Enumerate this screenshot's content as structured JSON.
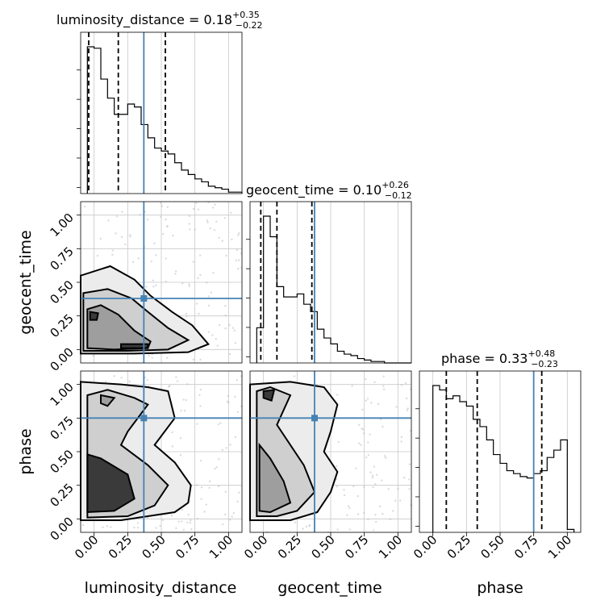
{
  "chart_data": {
    "type": "corner",
    "parameters": [
      "luminosity_distance",
      "geocent_time",
      "phase"
    ],
    "truths": [
      0.37,
      0.38,
      0.75
    ],
    "truth_color": "#4682b4",
    "range": [
      -0.1,
      1.1
    ],
    "ticks": [
      "0.00",
      "0.25",
      "0.50",
      "0.75",
      "1.00"
    ],
    "tick_values": [
      0,
      0.25,
      0.5,
      0.75,
      1.0
    ],
    "grid": true,
    "titles": [
      {
        "param": "luminosity_distance",
        "prefix": "luminosity_distance = ",
        "value": "0.18",
        "plus": "+0.35",
        "minus": "−0.22"
      },
      {
        "param": "geocent_time",
        "prefix": "geocent_time = ",
        "value": "0.10",
        "plus": "+0.26",
        "minus": "−0.12"
      },
      {
        "param": "phase",
        "prefix": "phase = ",
        "value": "0.33",
        "plus": "+0.48",
        "minus": "−0.23"
      }
    ],
    "histograms": [
      {
        "param": "luminosity_distance",
        "bin_edges": [
          -0.05,
          0.0,
          0.05,
          0.1,
          0.15,
          0.2,
          0.25,
          0.3,
          0.35,
          0.4,
          0.45,
          0.5,
          0.55,
          0.6,
          0.65,
          0.7,
          0.75,
          0.8,
          0.85,
          0.9,
          0.95,
          1.0,
          1.05,
          1.1
        ],
        "counts": [
          100,
          99,
          78,
          65,
          54,
          54,
          61,
          59,
          47,
          38,
          31,
          29,
          27,
          21,
          16,
          13,
          10,
          8,
          5,
          4,
          3,
          1,
          1
        ],
        "quantiles": [
          -0.04,
          0.18,
          0.53
        ],
        "truth": 0.37
      },
      {
        "param": "geocent_time",
        "bin_edges": [
          -0.05,
          0.0,
          0.05,
          0.1,
          0.15,
          0.2,
          0.25,
          0.3,
          0.35,
          0.4,
          0.45,
          0.5,
          0.55,
          0.6,
          0.65,
          0.7,
          0.75,
          0.8,
          0.85,
          0.9,
          0.95,
          1.0,
          1.05,
          1.1
        ],
        "counts": [
          24,
          100,
          86,
          52,
          45,
          45,
          47,
          40,
          35,
          23,
          17,
          13,
          8,
          6,
          5,
          3,
          2,
          1,
          1,
          0,
          0,
          0,
          0
        ],
        "quantiles": [
          -0.02,
          0.1,
          0.36
        ],
        "truth": 0.38
      },
      {
        "param": "phase",
        "bin_edges": [
          0.0,
          0.05,
          0.1,
          0.15,
          0.2,
          0.25,
          0.3,
          0.35,
          0.4,
          0.45,
          0.5,
          0.55,
          0.6,
          0.65,
          0.7,
          0.75,
          0.8,
          0.85,
          0.9,
          0.95,
          1.0,
          1.05
        ],
        "counts": [
          100,
          97,
          91,
          93,
          89,
          86,
          77,
          72,
          63,
          53,
          47,
          42,
          40,
          38,
          37,
          40,
          42,
          51,
          56,
          63,
          2
        ],
        "quantiles": [
          0.1,
          0.33,
          0.81
        ],
        "truth": 0.75
      }
    ],
    "pairs": [
      {
        "x": "luminosity_distance",
        "y": "geocent_time",
        "contours": [
          [
            [
              -0.1,
              0.55
            ],
            [
              0.12,
              0.62
            ],
            [
              0.3,
              0.52
            ],
            [
              0.42,
              0.4
            ],
            [
              0.58,
              0.28
            ],
            [
              0.73,
              0.18
            ],
            [
              0.85,
              0.04
            ],
            [
              0.7,
              -0.02
            ],
            [
              0.3,
              -0.03
            ],
            [
              -0.1,
              -0.03
            ]
          ],
          [
            [
              -0.08,
              0.42
            ],
            [
              0.1,
              0.45
            ],
            [
              0.28,
              0.38
            ],
            [
              0.4,
              0.28
            ],
            [
              0.55,
              0.16
            ],
            [
              0.7,
              0.07
            ],
            [
              0.55,
              0.0
            ],
            [
              0.25,
              -0.01
            ],
            [
              -0.08,
              -0.01
            ]
          ],
          [
            [
              -0.05,
              0.3
            ],
            [
              0.05,
              0.33
            ],
            [
              0.18,
              0.26
            ],
            [
              0.3,
              0.14
            ],
            [
              0.42,
              0.06
            ],
            [
              0.4,
              0.01
            ],
            [
              0.15,
              0.0
            ],
            [
              -0.05,
              0.01
            ]
          ],
          [
            [
              -0.03,
              0.22
            ],
            [
              0.02,
              0.22
            ],
            [
              0.03,
              0.27
            ],
            [
              -0.03,
              0.28
            ]
          ],
          [
            [
              0.2,
              0.01
            ],
            [
              0.4,
              0.01
            ],
            [
              0.4,
              0.04
            ],
            [
              0.2,
              0.04
            ]
          ]
        ]
      },
      {
        "x": "luminosity_distance",
        "y": "phase",
        "contours": [
          [
            [
              -0.1,
              1.02
            ],
            [
              0.2,
              1.0
            ],
            [
              0.4,
              0.98
            ],
            [
              0.55,
              0.95
            ],
            [
              0.6,
              0.75
            ],
            [
              0.45,
              0.55
            ],
            [
              0.6,
              0.42
            ],
            [
              0.72,
              0.25
            ],
            [
              0.7,
              0.12
            ],
            [
              0.6,
              0.05
            ],
            [
              0.2,
              -0.01
            ],
            [
              -0.1,
              -0.01
            ]
          ],
          [
            [
              -0.05,
              0.92
            ],
            [
              0.1,
              0.96
            ],
            [
              0.3,
              0.9
            ],
            [
              0.4,
              0.85
            ],
            [
              0.25,
              0.65
            ],
            [
              0.2,
              0.55
            ],
            [
              0.4,
              0.4
            ],
            [
              0.55,
              0.25
            ],
            [
              0.45,
              0.1
            ],
            [
              0.25,
              0.02
            ],
            [
              -0.05,
              0.01
            ]
          ],
          [
            [
              0.05,
              0.92
            ],
            [
              0.15,
              0.9
            ],
            [
              0.1,
              0.84
            ],
            [
              0.05,
              0.86
            ]
          ],
          [
            [
              -0.05,
              0.48
            ],
            [
              0.05,
              0.45
            ],
            [
              0.25,
              0.33
            ],
            [
              0.3,
              0.15
            ],
            [
              0.15,
              0.06
            ],
            [
              -0.05,
              0.05
            ]
          ]
        ]
      },
      {
        "x": "geocent_time",
        "y": "phase",
        "contours": [
          [
            [
              -0.1,
              1.0
            ],
            [
              0.2,
              1.02
            ],
            [
              0.45,
              0.98
            ],
            [
              0.55,
              0.85
            ],
            [
              0.5,
              0.65
            ],
            [
              0.45,
              0.5
            ],
            [
              0.55,
              0.35
            ],
            [
              0.5,
              0.2
            ],
            [
              0.4,
              0.05
            ],
            [
              0.2,
              -0.01
            ],
            [
              -0.1,
              -0.01
            ]
          ],
          [
            [
              -0.05,
              0.95
            ],
            [
              0.05,
              0.98
            ],
            [
              0.2,
              0.92
            ],
            [
              0.1,
              0.7
            ],
            [
              0.3,
              0.4
            ],
            [
              0.38,
              0.2
            ],
            [
              0.25,
              0.06
            ],
            [
              0.1,
              0.02
            ],
            [
              -0.05,
              0.02
            ]
          ],
          [
            [
              -0.03,
              0.55
            ],
            [
              0.05,
              0.45
            ],
            [
              0.15,
              0.28
            ],
            [
              0.2,
              0.12
            ],
            [
              0.05,
              0.05
            ],
            [
              -0.03,
              0.06
            ]
          ],
          [
            [
              0.0,
              0.95
            ],
            [
              0.08,
              0.96
            ],
            [
              0.06,
              0.88
            ],
            [
              0.0,
              0.9
            ]
          ]
        ]
      }
    ]
  }
}
